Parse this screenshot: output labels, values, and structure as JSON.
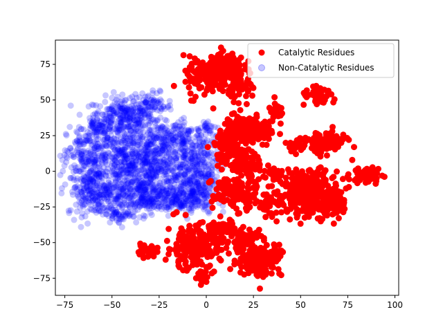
{
  "chart_data": {
    "type": "scatter",
    "title": "",
    "xlabel": "",
    "ylabel": "",
    "xlim": [
      -80,
      102
    ],
    "ylim": [
      -87,
      92
    ],
    "xticks": [
      -75,
      -50,
      -25,
      0,
      25,
      50,
      75,
      100
    ],
    "yticks": [
      -75,
      -50,
      -25,
      0,
      25,
      50,
      75
    ],
    "xtick_labels": [
      "−75",
      "−50",
      "−25",
      "0",
      "25",
      "50",
      "75",
      "100"
    ],
    "ytick_labels": [
      "−75",
      "−50",
      "−25",
      "0",
      "25",
      "50",
      "75"
    ],
    "grid": false,
    "legend_position": "upper-right",
    "series": [
      {
        "name": "Non-Catalytic Residues",
        "color": "#0000ff",
        "opacity": 0.22,
        "clusters": [
          {
            "cx": -44,
            "cy": 38,
            "sx": 8,
            "sy": 7,
            "n": 260
          },
          {
            "cx": -30,
            "cy": 45,
            "sx": 6,
            "sy": 5,
            "n": 90
          },
          {
            "cx": -58,
            "cy": 30,
            "sx": 4,
            "sy": 5,
            "n": 50
          },
          {
            "cx": -45,
            "cy": 10,
            "sx": 14,
            "sy": 10,
            "n": 380
          },
          {
            "cx": -64,
            "cy": 10,
            "sx": 5,
            "sy": 11,
            "n": 130
          },
          {
            "cx": -25,
            "cy": 20,
            "sx": 8,
            "sy": 7,
            "n": 150
          },
          {
            "cx": -10,
            "cy": 23,
            "sx": 8,
            "sy": 6,
            "n": 130
          },
          {
            "cx": -30,
            "cy": 0,
            "sx": 12,
            "sy": 9,
            "n": 280
          },
          {
            "cx": -12,
            "cy": -8,
            "sx": 8,
            "sy": 10,
            "n": 180
          },
          {
            "cx": -2,
            "cy": 5,
            "sx": 5,
            "sy": 12,
            "n": 130
          },
          {
            "cx": -58,
            "cy": -15,
            "sx": 8,
            "sy": 8,
            "n": 240
          },
          {
            "cx": -35,
            "cy": -18,
            "sx": 11,
            "sy": 6,
            "n": 240
          },
          {
            "cx": -15,
            "cy": -20,
            "sx": 10,
            "sy": 5,
            "n": 150
          },
          {
            "cx": -45,
            "cy": -30,
            "sx": 4,
            "sy": 3,
            "n": 50
          },
          {
            "cx": 1,
            "cy": 31,
            "sx": 2,
            "sy": 2,
            "n": 16
          },
          {
            "cx": -3,
            "cy": -14,
            "sx": 4,
            "sy": 4,
            "n": 40
          }
        ]
      },
      {
        "name": "Catalytic Residues",
        "color": "#ff0000",
        "opacity": 1.0,
        "clusters": [
          {
            "cx": 10,
            "cy": 72,
            "sx": 5,
            "sy": 6,
            "n": 150
          },
          {
            "cx": 0,
            "cy": 66,
            "sx": 6,
            "sy": 7,
            "n": 110
          },
          {
            "cx": 20,
            "cy": 58,
            "sx": 4,
            "sy": 4,
            "n": 40
          },
          {
            "cx": 60,
            "cy": 52,
            "sx": 5,
            "sy": 3,
            "n": 40
          },
          {
            "cx": 37,
            "cy": 42,
            "sx": 2,
            "sy": 3,
            "n": 25
          },
          {
            "cx": 20,
            "cy": 30,
            "sx": 5,
            "sy": 5,
            "n": 130
          },
          {
            "cx": 12,
            "cy": 18,
            "sx": 4,
            "sy": 6,
            "n": 80
          },
          {
            "cx": 30,
            "cy": 28,
            "sx": 4,
            "sy": 4,
            "n": 50
          },
          {
            "cx": 62,
            "cy": 20,
            "sx": 6,
            "sy": 4,
            "n": 110
          },
          {
            "cx": 47,
            "cy": 17,
            "sx": 3,
            "sy": 2,
            "n": 20
          },
          {
            "cx": 22,
            "cy": 5,
            "sx": 5,
            "sy": 4,
            "n": 70
          },
          {
            "cx": 36,
            "cy": -2,
            "sx": 3,
            "sy": 3,
            "n": 40
          },
          {
            "cx": 15,
            "cy": -15,
            "sx": 6,
            "sy": 6,
            "n": 130
          },
          {
            "cx": 35,
            "cy": -23,
            "sx": 4,
            "sy": 5,
            "n": 50
          },
          {
            "cx": 55,
            "cy": -15,
            "sx": 8,
            "sy": 8,
            "n": 280
          },
          {
            "cx": 67,
            "cy": -22,
            "sx": 3,
            "sy": 5,
            "n": 60
          },
          {
            "cx": 85,
            "cy": -3,
            "sx": 4,
            "sy": 3,
            "n": 60
          },
          {
            "cx": -7,
            "cy": -53,
            "sx": 7,
            "sy": 8,
            "n": 200
          },
          {
            "cx": -32,
            "cy": -56,
            "sx": 3,
            "sy": 2,
            "n": 25
          },
          {
            "cx": 7,
            "cy": -40,
            "sx": 4,
            "sy": 4,
            "n": 40
          },
          {
            "cx": 20,
            "cy": -48,
            "sx": 5,
            "sy": 4,
            "n": 80
          },
          {
            "cx": 28,
            "cy": -62,
            "sx": 6,
            "sy": 6,
            "n": 150
          },
          {
            "cx": 38,
            "cy": -57,
            "sx": 2,
            "sy": 2,
            "n": 20
          },
          {
            "cx": -2,
            "cy": -75,
            "sx": 2,
            "sy": 2,
            "n": 20
          }
        ]
      }
    ]
  }
}
